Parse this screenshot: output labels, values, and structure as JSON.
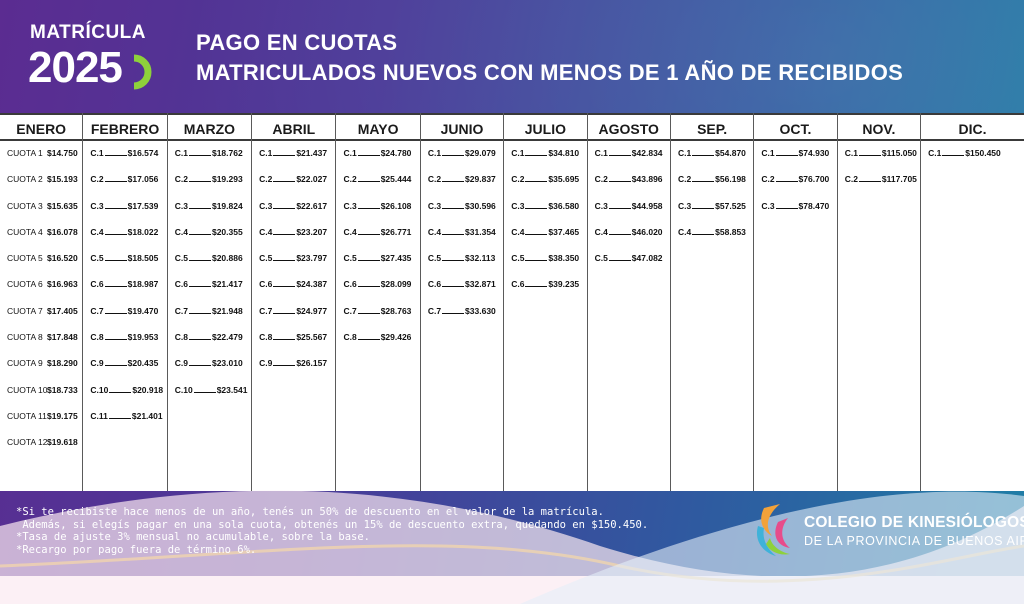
{
  "logo": {
    "word": "MATRÍCULA",
    "year": "2025"
  },
  "header": {
    "line1": "PAGO EN CUOTAS",
    "line2": "MATRICULADOS NUEVOS CON MENOS DE 1 AÑO DE RECIBIDOS"
  },
  "table": {
    "columns": [
      {
        "name": "ENERO",
        "entries": [
          {
            "label": "CUOTA 1",
            "amount": "$14.750"
          },
          {
            "label": "CUOTA 2",
            "amount": "$15.193"
          },
          {
            "label": "CUOTA 3",
            "amount": "$15.635"
          },
          {
            "label": "CUOTA 4",
            "amount": "$16.078"
          },
          {
            "label": "CUOTA 5",
            "amount": "$16.520"
          },
          {
            "label": "CUOTA 6",
            "amount": "$16.963"
          },
          {
            "label": "CUOTA 7",
            "amount": "$17.405"
          },
          {
            "label": "CUOTA 8",
            "amount": "$17.848"
          },
          {
            "label": "CUOTA 9",
            "amount": "$18.290"
          },
          {
            "label": "CUOTA 10",
            "amount": "$18.733"
          },
          {
            "label": "CUOTA 11",
            "amount": "$19.175"
          },
          {
            "label": "CUOTA 12",
            "amount": "$19.618"
          }
        ]
      },
      {
        "name": "FEBRERO",
        "entries": [
          {
            "label": "C.1",
            "amount": "$16.574"
          },
          {
            "label": "C.2",
            "amount": "$17.056"
          },
          {
            "label": "C.3",
            "amount": "$17.539"
          },
          {
            "label": "C.4",
            "amount": "$18.022"
          },
          {
            "label": "C.5",
            "amount": "$18.505"
          },
          {
            "label": "C.6",
            "amount": "$18.987"
          },
          {
            "label": "C.7",
            "amount": "$19.470"
          },
          {
            "label": "C.8",
            "amount": "$19.953"
          },
          {
            "label": "C.9",
            "amount": "$20.435"
          },
          {
            "label": "C.10",
            "amount": "$20.918"
          },
          {
            "label": "C.11",
            "amount": "$21.401"
          }
        ]
      },
      {
        "name": "MARZO",
        "entries": [
          {
            "label": "C.1",
            "amount": "$18.762"
          },
          {
            "label": "C.2",
            "amount": "$19.293"
          },
          {
            "label": "C.3",
            "amount": "$19.824"
          },
          {
            "label": "C.4",
            "amount": "$20.355"
          },
          {
            "label": "C.5",
            "amount": "$20.886"
          },
          {
            "label": "C.6",
            "amount": "$21.417"
          },
          {
            "label": "C.7",
            "amount": "$21.948"
          },
          {
            "label": "C.8",
            "amount": "$22.479"
          },
          {
            "label": "C.9",
            "amount": "$23.010"
          },
          {
            "label": "C.10",
            "amount": "$23.541"
          }
        ]
      },
      {
        "name": "ABRIL",
        "entries": [
          {
            "label": "C.1",
            "amount": "$21.437"
          },
          {
            "label": "C.2",
            "amount": "$22.027"
          },
          {
            "label": "C.3",
            "amount": "$22.617"
          },
          {
            "label": "C.4",
            "amount": "$23.207"
          },
          {
            "label": "C.5",
            "amount": "$23.797"
          },
          {
            "label": "C.6",
            "amount": "$24.387"
          },
          {
            "label": "C.7",
            "amount": "$24.977"
          },
          {
            "label": "C.8",
            "amount": "$25.567"
          },
          {
            "label": "C.9",
            "amount": "$26.157"
          }
        ]
      },
      {
        "name": "MAYO",
        "entries": [
          {
            "label": "C.1",
            "amount": "$24.780"
          },
          {
            "label": "C.2",
            "amount": "$25.444"
          },
          {
            "label": "C.3",
            "amount": "$26.108"
          },
          {
            "label": "C.4",
            "amount": "$26.771"
          },
          {
            "label": "C.5",
            "amount": "$27.435"
          },
          {
            "label": "C.6",
            "amount": "$28.099"
          },
          {
            "label": "C.7",
            "amount": "$28.763"
          },
          {
            "label": "C.8",
            "amount": "$29.426"
          }
        ]
      },
      {
        "name": "JUNIO",
        "entries": [
          {
            "label": "C.1",
            "amount": "$29.079"
          },
          {
            "label": "C.2",
            "amount": "$29.837"
          },
          {
            "label": "C.3",
            "amount": "$30.596"
          },
          {
            "label": "C.4",
            "amount": "$31.354"
          },
          {
            "label": "C.5",
            "amount": "$32.113"
          },
          {
            "label": "C.6",
            "amount": "$32.871"
          },
          {
            "label": "C.7",
            "amount": "$33.630"
          }
        ]
      },
      {
        "name": "JULIO",
        "entries": [
          {
            "label": "C.1",
            "amount": "$34.810"
          },
          {
            "label": "C.2",
            "amount": "$35.695"
          },
          {
            "label": "C.3",
            "amount": "$36.580"
          },
          {
            "label": "C.4",
            "amount": "$37.465"
          },
          {
            "label": "C.5",
            "amount": "$38.350"
          },
          {
            "label": "C.6",
            "amount": "$39.235"
          }
        ]
      },
      {
        "name": "AGOSTO",
        "entries": [
          {
            "label": "C.1",
            "amount": "$42.834"
          },
          {
            "label": "C.2",
            "amount": "$43.896"
          },
          {
            "label": "C.3",
            "amount": "$44.958"
          },
          {
            "label": "C.4",
            "amount": "$46.020"
          },
          {
            "label": "C.5",
            "amount": "$47.082"
          }
        ]
      },
      {
        "name": "SEP.",
        "entries": [
          {
            "label": "C.1",
            "amount": "$54.870"
          },
          {
            "label": "C.2",
            "amount": "$56.198"
          },
          {
            "label": "C.3",
            "amount": "$57.525"
          },
          {
            "label": "C.4",
            "amount": "$58.853"
          }
        ]
      },
      {
        "name": "OCT.",
        "entries": [
          {
            "label": "C.1",
            "amount": "$74.930"
          },
          {
            "label": "C.2",
            "amount": "$76.700"
          },
          {
            "label": "C.3",
            "amount": "$78.470"
          }
        ]
      },
      {
        "name": "NOV.",
        "entries": [
          {
            "label": "C.1",
            "amount": "$115.050"
          },
          {
            "label": "C.2",
            "amount": "$117.705"
          }
        ]
      },
      {
        "name": "DIC.",
        "entries": [
          {
            "label": "C.1",
            "amount": "$150.450"
          }
        ]
      }
    ]
  },
  "footnotes": [
    "*Si te recibiste hace menos de un año, tenés un 50% de descuento en el valor de la matrícula.",
    " Además, si elegís pagar en una sola cuota, obtenés un 15% de descuento extra, quedando en $150.450.",
    "*Tasa de ajuste 3% mensual no acumulable, sobre la base.",
    "*Recargo por pago fuera de término 6%."
  ],
  "brand": {
    "line1_a": "COLEGIO DE ",
    "line1_b": "KINESIÓLOGOS",
    "line2": "DE LA PROVINCIA DE BUENOS AIRES"
  },
  "colors": {
    "accent_green": "#8ed13b",
    "bg_purple": "#5b2c91",
    "bg_blue": "#1f7ea6"
  }
}
